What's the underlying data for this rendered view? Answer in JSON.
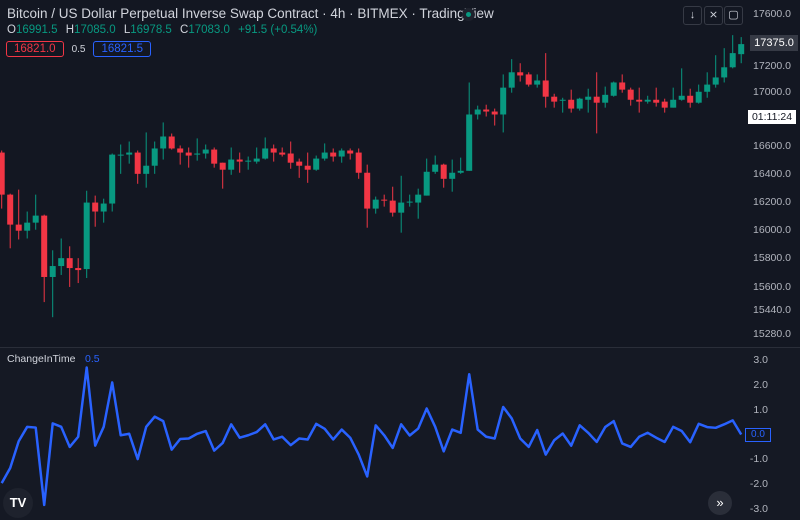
{
  "header": {
    "title": "Bitcoin / US Dollar Perpetual Inverse Swap Contract · 4h · BITMEX · TradingView",
    "ohlc": {
      "o_label": "O",
      "o": "16991.5",
      "h_label": "H",
      "h": "17085.0",
      "l_label": "L",
      "l": "16978.5",
      "c_label": "C",
      "c": "17083.0",
      "change": "+91.5 (+0.54%)"
    },
    "sell_price": "16821.0",
    "spread": "0.5",
    "buy_price": "16821.5",
    "toolbar_icons": [
      "arrow-down-icon",
      "collapse-icon",
      "maximize-icon"
    ]
  },
  "price_axis": {
    "scale": "log",
    "ticks": [
      "17600.0",
      "17200.0",
      "17000.0",
      "16600.0",
      "16400.0",
      "16200.0",
      "16000.0",
      "15800.0",
      "15600.0",
      "15440.0",
      "15280.0"
    ],
    "last_price": "17375.0",
    "countdown": "01:11:24"
  },
  "indicator": {
    "name": "ChangeInTime",
    "param": "0.5",
    "current_value": "0.0",
    "ticks": [
      "3.0",
      "2.0",
      "1.0",
      "0.0",
      "-1.0",
      "-2.0",
      "-3.0"
    ]
  },
  "colors": {
    "up": "#089981",
    "down": "#f23645",
    "line": "#2962ff",
    "background": "#131722"
  },
  "footer": {
    "logo": "TV",
    "scroll_icon": "»"
  },
  "chart_data": [
    {
      "type": "candlestick",
      "interval": "4h",
      "yscale": "log",
      "ohlc": [
        [
          16562,
          16577,
          16157,
          16257
        ],
        [
          16257,
          16264,
          15876,
          16043
        ],
        [
          16043,
          16293,
          15938,
          16000
        ],
        [
          16000,
          16136,
          15945,
          16057
        ],
        [
          16057,
          16257,
          16007,
          16107
        ],
        [
          16107,
          16114,
          15503,
          15676
        ],
        [
          15676,
          15862,
          15400,
          15752
        ],
        [
          15752,
          15945,
          15690,
          15807
        ],
        [
          15807,
          15890,
          15607,
          15738
        ],
        [
          15738,
          15807,
          15634,
          15724
        ],
        [
          15731,
          16285,
          15669,
          16200
        ],
        [
          16200,
          16250,
          16028,
          16136
        ],
        [
          16136,
          16228,
          16057,
          16193
        ],
        [
          16193,
          16555,
          16136,
          16547
        ],
        [
          16540,
          16621,
          16407,
          16547
        ],
        [
          16547,
          16643,
          16481,
          16562
        ],
        [
          16562,
          16577,
          16335,
          16407
        ],
        [
          16407,
          16710,
          16307,
          16466
        ],
        [
          16466,
          16643,
          16407,
          16592
        ],
        [
          16592,
          16784,
          16511,
          16680
        ],
        [
          16680,
          16702,
          16584,
          16592
        ],
        [
          16592,
          16614,
          16474,
          16562
        ],
        [
          16562,
          16599,
          16452,
          16540
        ],
        [
          16547,
          16666,
          16503,
          16555
        ],
        [
          16555,
          16621,
          16518,
          16584
        ],
        [
          16584,
          16599,
          16452,
          16481
        ],
        [
          16488,
          16488,
          16300,
          16437
        ],
        [
          16437,
          16599,
          16400,
          16511
        ],
        [
          16511,
          16562,
          16415,
          16496
        ],
        [
          16496,
          16533,
          16437,
          16503
        ],
        [
          16496,
          16599,
          16481,
          16518
        ],
        [
          16518,
          16673,
          16511,
          16592
        ],
        [
          16592,
          16621,
          16496,
          16562
        ],
        [
          16562,
          16599,
          16533,
          16547
        ],
        [
          16555,
          16643,
          16444,
          16488
        ],
        [
          16496,
          16518,
          16378,
          16466
        ],
        [
          16466,
          16562,
          16342,
          16437
        ],
        [
          16437,
          16540,
          16429,
          16518
        ],
        [
          16518,
          16629,
          16503,
          16562
        ],
        [
          16562,
          16592,
          16496,
          16533
        ],
        [
          16533,
          16592,
          16488,
          16577
        ],
        [
          16577,
          16592,
          16511,
          16555
        ],
        [
          16562,
          16592,
          16371,
          16415
        ],
        [
          16415,
          16474,
          16021,
          16157
        ],
        [
          16157,
          16243,
          16121,
          16221
        ],
        [
          16221,
          16257,
          16171,
          16214
        ],
        [
          16214,
          16314,
          16100,
          16128
        ],
        [
          16128,
          16393,
          15986,
          16200
        ],
        [
          16200,
          16257,
          16171,
          16207
        ],
        [
          16200,
          16300,
          16085,
          16257
        ],
        [
          16250,
          16518,
          16250,
          16422
        ],
        [
          16422,
          16540,
          16407,
          16474
        ],
        [
          16474,
          16481,
          16307,
          16371
        ],
        [
          16371,
          16511,
          16278,
          16415
        ],
        [
          16415,
          16525,
          16407,
          16429
        ],
        [
          16429,
          17083,
          16429,
          16843
        ],
        [
          16843,
          16909,
          16806,
          16880
        ],
        [
          16880,
          16916,
          16828,
          16865
        ],
        [
          16865,
          16887,
          16761,
          16843
        ],
        [
          16843,
          17144,
          16710,
          17044
        ],
        [
          17044,
          17260,
          17006,
          17160
        ],
        [
          17160,
          17229,
          17090,
          17136
        ],
        [
          17144,
          17160,
          17052,
          17067
        ],
        [
          17067,
          17144,
          17044,
          17098
        ],
        [
          17098,
          17306,
          16894,
          16976
        ],
        [
          16976,
          16998,
          16894,
          16939
        ],
        [
          16946,
          16968,
          16857,
          16953
        ],
        [
          16953,
          17029,
          16857,
          16887
        ],
        [
          16887,
          16968,
          16872,
          16961
        ],
        [
          16953,
          17036,
          16857,
          16976
        ],
        [
          16976,
          17160,
          16703,
          16931
        ],
        [
          16931,
          17052,
          16894,
          16990
        ],
        [
          16983,
          17090,
          16976,
          17083
        ],
        [
          17083,
          17144,
          17006,
          17029
        ],
        [
          17029,
          17044,
          16909,
          16953
        ],
        [
          16953,
          17044,
          16857,
          16939
        ],
        [
          16939,
          16983,
          16924,
          16953
        ],
        [
          16953,
          17044,
          16902,
          16931
        ],
        [
          16939,
          16961,
          16857,
          16894
        ],
        [
          16894,
          17044,
          16894,
          16953
        ],
        [
          16953,
          17190,
          16946,
          16983
        ],
        [
          16983,
          17036,
          16894,
          16931
        ],
        [
          16931,
          17067,
          16924,
          17013
        ],
        [
          17013,
          17160,
          16968,
          17067
        ],
        [
          17067,
          17290,
          17044,
          17121
        ],
        [
          17121,
          17344,
          17083,
          17198
        ],
        [
          17198,
          17444,
          17190,
          17306
        ],
        [
          17298,
          17429,
          17229,
          17375
        ]
      ]
    },
    {
      "type": "line",
      "name": "ChangeInTime",
      "ylim": [
        -3,
        3
      ],
      "values": [
        -1.92,
        -1.31,
        -0.23,
        0.35,
        0.32,
        -2.8,
        0.49,
        0.35,
        -0.46,
        -0.05,
        2.74,
        -0.41,
        0.35,
        2.14,
        0.01,
        0.07,
        -0.95,
        0.35,
        0.76,
        0.58,
        -0.57,
        -0.14,
        -0.12,
        0.07,
        0.18,
        -0.61,
        -0.3,
        0.45,
        -0.09,
        0.01,
        0.14,
        0.45,
        -0.16,
        -0.05,
        -0.39,
        -0.12,
        -0.16,
        0.47,
        0.27,
        -0.16,
        0.24,
        -0.09,
        -0.77,
        -1.65,
        0.41,
        0.01,
        -0.5,
        0.45,
        0.0,
        0.28,
        1.09,
        0.35,
        -0.64,
        0.24,
        0.11,
        2.47,
        0.24,
        -0.05,
        -0.12,
        1.15,
        0.69,
        -0.12,
        -0.46,
        0.22,
        -0.77,
        -0.19,
        0.08,
        -0.41,
        0.41,
        0.11,
        -0.26,
        0.34,
        0.58,
        -0.32,
        -0.46,
        -0.05,
        0.11,
        -0.09,
        -0.26,
        0.35,
        0.18,
        -0.27,
        0.47,
        0.34,
        0.31,
        0.45,
        0.61,
        0.04
      ]
    }
  ]
}
